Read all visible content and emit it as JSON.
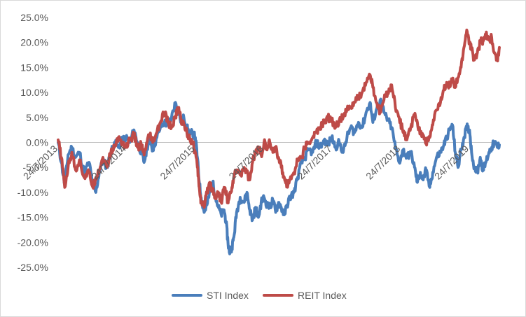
{
  "chart_data": {
    "type": "line",
    "title": "",
    "xlabel": "",
    "ylabel": "",
    "x_range": [
      "2013-07-24",
      "2019-12-31"
    ],
    "ylim": [
      -25,
      25
    ],
    "y_ticks": [
      25,
      20,
      15,
      10,
      5,
      0,
      -5,
      -10,
      -15,
      -20,
      -25
    ],
    "y_tick_labels": [
      "25.0%",
      "20.0%",
      "15.0%",
      "10.0%",
      "5.0%",
      "0.0%",
      "-5.0%",
      "-10.0%",
      "-15.0%",
      "-20.0%",
      "-25.0%"
    ],
    "x_tick_labels": [
      {
        "date": "2013-07-24",
        "label": "24/7/2013"
      },
      {
        "date": "2014-07-24",
        "label": "24/7/2014"
      },
      {
        "date": "2015-07-24",
        "label": "24/7/2015"
      },
      {
        "date": "2016-07-24",
        "label": "24/7/2016"
      },
      {
        "date": "2017-07-24",
        "label": "24/7/2017"
      },
      {
        "date": "2018-07-24",
        "label": "24/7/2018"
      },
      {
        "date": "2019-07-24",
        "label": "24/7/2019"
      }
    ],
    "grid": false,
    "legend_position": "bottom",
    "series": [
      {
        "name": "STI Index",
        "color": "#4a7ebb",
        "points": [
          [
            "2013-07-24",
            0.0
          ],
          [
            "2013-08-10",
            -4.0
          ],
          [
            "2013-08-28",
            -8.5
          ],
          [
            "2013-09-15",
            -2.5
          ],
          [
            "2013-10-05",
            -1.0
          ],
          [
            "2013-10-25",
            -3.0
          ],
          [
            "2013-11-15",
            -2.0
          ],
          [
            "2013-12-10",
            -6.0
          ],
          [
            "2014-01-05",
            -4.0
          ],
          [
            "2014-01-25",
            -8.5
          ],
          [
            "2014-02-10",
            -10.0
          ],
          [
            "2014-02-28",
            -6.0
          ],
          [
            "2014-03-20",
            -3.5
          ],
          [
            "2014-04-10",
            -5.0
          ],
          [
            "2014-05-01",
            -2.0
          ],
          [
            "2014-05-20",
            0.0
          ],
          [
            "2014-06-10",
            -1.0
          ],
          [
            "2014-07-01",
            0.5
          ],
          [
            "2014-07-20",
            1.0
          ],
          [
            "2014-08-10",
            0.0
          ],
          [
            "2014-09-01",
            2.5
          ],
          [
            "2014-09-20",
            0.0
          ],
          [
            "2014-10-10",
            -2.0
          ],
          [
            "2014-10-25",
            -4.0
          ],
          [
            "2014-11-10",
            -1.0
          ],
          [
            "2014-11-25",
            1.0
          ],
          [
            "2014-12-10",
            -1.5
          ],
          [
            "2015-01-01",
            1.0
          ],
          [
            "2015-01-20",
            3.0
          ],
          [
            "2015-02-10",
            4.0
          ],
          [
            "2015-03-01",
            3.5
          ],
          [
            "2015-03-20",
            5.0
          ],
          [
            "2015-04-10",
            8.0
          ],
          [
            "2015-04-25",
            6.5
          ],
          [
            "2015-05-10",
            4.0
          ],
          [
            "2015-05-25",
            5.0
          ],
          [
            "2015-06-10",
            3.0
          ],
          [
            "2015-06-25",
            1.5
          ],
          [
            "2015-07-10",
            2.0
          ],
          [
            "2015-07-25",
            1.0
          ],
          [
            "2015-08-05",
            -3.0
          ],
          [
            "2015-08-15",
            -8.0
          ],
          [
            "2015-08-25",
            -11.0
          ],
          [
            "2015-09-10",
            -14.0
          ],
          [
            "2015-09-25",
            -12.5
          ],
          [
            "2015-10-10",
            -10.0
          ],
          [
            "2015-10-25",
            -8.0
          ],
          [
            "2015-11-10",
            -11.0
          ],
          [
            "2015-11-25",
            -13.0
          ],
          [
            "2015-12-10",
            -14.5
          ],
          [
            "2015-12-25",
            -13.5
          ],
          [
            "2016-01-05",
            -16.0
          ],
          [
            "2016-01-15",
            -20.0
          ],
          [
            "2016-01-22",
            -22.0
          ],
          [
            "2016-02-05",
            -21.0
          ],
          [
            "2016-02-15",
            -19.0
          ],
          [
            "2016-03-01",
            -14.0
          ],
          [
            "2016-03-20",
            -11.0
          ],
          [
            "2016-04-10",
            -12.0
          ],
          [
            "2016-04-25",
            -10.0
          ],
          [
            "2016-05-10",
            -13.5
          ],
          [
            "2016-05-25",
            -15.5
          ],
          [
            "2016-06-10",
            -13.0
          ],
          [
            "2016-06-25",
            -15.0
          ],
          [
            "2016-07-10",
            -12.0
          ],
          [
            "2016-07-25",
            -11.0
          ],
          [
            "2016-08-10",
            -12.5
          ],
          [
            "2016-08-25",
            -13.0
          ],
          [
            "2016-09-10",
            -11.5
          ],
          [
            "2016-09-25",
            -14.0
          ],
          [
            "2016-10-10",
            -12.0
          ],
          [
            "2016-10-25",
            -13.0
          ],
          [
            "2016-11-10",
            -14.5
          ],
          [
            "2016-11-25",
            -12.5
          ],
          [
            "2016-12-10",
            -11.0
          ],
          [
            "2017-01-01",
            -10.0
          ],
          [
            "2017-01-20",
            -7.0
          ],
          [
            "2017-02-10",
            -4.0
          ],
          [
            "2017-02-28",
            -3.0
          ],
          [
            "2017-03-20",
            -1.5
          ],
          [
            "2017-04-10",
            -2.0
          ],
          [
            "2017-04-30",
            0.0
          ],
          [
            "2017-05-20",
            -1.0
          ],
          [
            "2017-06-10",
            0.5
          ],
          [
            "2017-06-30",
            -0.5
          ],
          [
            "2017-07-20",
            1.0
          ],
          [
            "2017-08-10",
            -1.0
          ],
          [
            "2017-08-30",
            0.0
          ],
          [
            "2017-09-20",
            -2.0
          ],
          [
            "2017-10-10",
            1.0
          ],
          [
            "2017-10-30",
            3.0
          ],
          [
            "2017-11-20",
            2.0
          ],
          [
            "2017-12-10",
            4.0
          ],
          [
            "2017-12-30",
            3.0
          ],
          [
            "2018-01-20",
            6.0
          ],
          [
            "2018-02-10",
            8.0
          ],
          [
            "2018-02-25",
            4.0
          ],
          [
            "2018-03-15",
            6.5
          ],
          [
            "2018-04-05",
            8.5
          ],
          [
            "2018-04-25",
            6.0
          ],
          [
            "2018-05-15",
            4.5
          ],
          [
            "2018-06-05",
            3.0
          ],
          [
            "2018-06-25",
            -1.0
          ],
          [
            "2018-07-15",
            -4.0
          ],
          [
            "2018-08-05",
            -1.5
          ],
          [
            "2018-08-25",
            -3.0
          ],
          [
            "2018-09-15",
            -2.0
          ],
          [
            "2018-10-05",
            -5.0
          ],
          [
            "2018-10-20",
            -8.0
          ],
          [
            "2018-11-05",
            -6.0
          ],
          [
            "2018-11-20",
            -7.5
          ],
          [
            "2018-12-05",
            -5.5
          ],
          [
            "2018-12-25",
            -9.0
          ],
          [
            "2019-01-10",
            -6.0
          ],
          [
            "2019-01-30",
            -3.0
          ],
          [
            "2019-02-20",
            -2.0
          ],
          [
            "2019-03-10",
            -0.5
          ],
          [
            "2019-03-25",
            1.0
          ],
          [
            "2019-04-10",
            2.5
          ],
          [
            "2019-04-25",
            3.5
          ],
          [
            "2019-05-10",
            -2.0
          ],
          [
            "2019-05-25",
            -5.0
          ],
          [
            "2019-06-10",
            -1.5
          ],
          [
            "2019-06-25",
            1.0
          ],
          [
            "2019-07-10",
            3.0
          ],
          [
            "2019-07-25",
            2.5
          ],
          [
            "2019-08-05",
            -2.0
          ],
          [
            "2019-08-20",
            -5.0
          ],
          [
            "2019-09-05",
            -6.0
          ],
          [
            "2019-09-20",
            -3.0
          ],
          [
            "2019-10-05",
            -5.5
          ],
          [
            "2019-10-20",
            -4.0
          ],
          [
            "2019-11-05",
            -2.0
          ],
          [
            "2019-11-20",
            -1.0
          ],
          [
            "2019-12-05",
            0.0
          ],
          [
            "2019-12-20",
            -1.0
          ],
          [
            "2019-12-31",
            -0.5
          ]
        ]
      },
      {
        "name": "REIT Index",
        "color": "#be4b48",
        "points": [
          [
            "2013-07-24",
            0.5
          ],
          [
            "2013-08-10",
            -3.0
          ],
          [
            "2013-08-28",
            -9.0
          ],
          [
            "2013-09-15",
            -5.0
          ],
          [
            "2013-10-05",
            -2.0
          ],
          [
            "2013-10-25",
            -5.5
          ],
          [
            "2013-11-15",
            -3.5
          ],
          [
            "2013-12-10",
            -7.0
          ],
          [
            "2014-01-05",
            -6.0
          ],
          [
            "2014-01-25",
            -9.0
          ],
          [
            "2014-02-10",
            -7.0
          ],
          [
            "2014-02-28",
            -5.5
          ],
          [
            "2014-03-20",
            -3.0
          ],
          [
            "2014-04-10",
            -5.0
          ],
          [
            "2014-05-01",
            -2.0
          ],
          [
            "2014-05-20",
            -1.0
          ],
          [
            "2014-06-10",
            1.0
          ],
          [
            "2014-07-01",
            0.0
          ],
          [
            "2014-07-20",
            -1.0
          ],
          [
            "2014-08-10",
            0.5
          ],
          [
            "2014-09-01",
            1.5
          ],
          [
            "2014-09-20",
            -1.0
          ],
          [
            "2014-10-10",
            -0.5
          ],
          [
            "2014-10-25",
            -2.5
          ],
          [
            "2014-11-10",
            0.0
          ],
          [
            "2014-11-25",
            1.5
          ],
          [
            "2014-12-10",
            0.0
          ],
          [
            "2015-01-01",
            2.0
          ],
          [
            "2015-01-20",
            4.0
          ],
          [
            "2015-02-10",
            6.0
          ],
          [
            "2015-03-01",
            4.0
          ],
          [
            "2015-03-20",
            3.0
          ],
          [
            "2015-04-10",
            5.0
          ],
          [
            "2015-04-25",
            7.0
          ],
          [
            "2015-05-10",
            4.5
          ],
          [
            "2015-05-25",
            3.5
          ],
          [
            "2015-06-10",
            2.0
          ],
          [
            "2015-06-25",
            1.0
          ],
          [
            "2015-07-10",
            0.0
          ],
          [
            "2015-07-25",
            -2.0
          ],
          [
            "2015-08-05",
            -5.0
          ],
          [
            "2015-08-15",
            -9.0
          ],
          [
            "2015-08-25",
            -12.0
          ],
          [
            "2015-09-10",
            -13.0
          ],
          [
            "2015-09-25",
            -10.0
          ],
          [
            "2015-10-10",
            -8.0
          ],
          [
            "2015-10-25",
            -9.5
          ],
          [
            "2015-11-10",
            -11.0
          ],
          [
            "2015-11-25",
            -10.0
          ],
          [
            "2015-12-10",
            -12.0
          ],
          [
            "2015-12-25",
            -9.0
          ],
          [
            "2016-01-05",
            -10.0
          ],
          [
            "2016-01-15",
            -12.0
          ],
          [
            "2016-01-22",
            -11.0
          ],
          [
            "2016-02-05",
            -9.0
          ],
          [
            "2016-02-15",
            -7.0
          ],
          [
            "2016-03-01",
            -5.5
          ],
          [
            "2016-03-20",
            -6.5
          ],
          [
            "2016-04-10",
            -5.0
          ],
          [
            "2016-04-25",
            -6.0
          ],
          [
            "2016-05-10",
            -7.5
          ],
          [
            "2016-05-25",
            -4.0
          ],
          [
            "2016-06-10",
            -2.0
          ],
          [
            "2016-06-25",
            -1.0
          ],
          [
            "2016-07-10",
            -2.5
          ],
          [
            "2016-07-25",
            0.0
          ],
          [
            "2016-08-10",
            -1.5
          ],
          [
            "2016-08-25",
            0.0
          ],
          [
            "2016-09-10",
            -2.0
          ],
          [
            "2016-09-25",
            -1.0
          ],
          [
            "2016-10-10",
            -3.0
          ],
          [
            "2016-10-25",
            -5.0
          ],
          [
            "2016-11-10",
            -7.0
          ],
          [
            "2016-11-25",
            -8.5
          ],
          [
            "2016-12-10",
            -7.5
          ],
          [
            "2017-01-01",
            -6.0
          ],
          [
            "2017-01-20",
            -3.5
          ],
          [
            "2017-02-10",
            -3.0
          ],
          [
            "2017-02-28",
            -1.0
          ],
          [
            "2017-03-20",
            0.0
          ],
          [
            "2017-04-10",
            1.0
          ],
          [
            "2017-04-30",
            2.0
          ],
          [
            "2017-05-20",
            3.0
          ],
          [
            "2017-06-10",
            4.0
          ],
          [
            "2017-06-30",
            5.0
          ],
          [
            "2017-07-20",
            4.5
          ],
          [
            "2017-08-10",
            3.0
          ],
          [
            "2017-08-30",
            4.5
          ],
          [
            "2017-09-20",
            5.0
          ],
          [
            "2017-10-10",
            6.5
          ],
          [
            "2017-10-30",
            7.0
          ],
          [
            "2017-11-20",
            8.0
          ],
          [
            "2017-12-10",
            9.0
          ],
          [
            "2017-12-30",
            10.0
          ],
          [
            "2018-01-20",
            12.0
          ],
          [
            "2018-02-10",
            13.5
          ],
          [
            "2018-02-25",
            11.0
          ],
          [
            "2018-03-15",
            8.0
          ],
          [
            "2018-04-05",
            6.0
          ],
          [
            "2018-04-25",
            8.5
          ],
          [
            "2018-05-15",
            10.0
          ],
          [
            "2018-06-05",
            11.5
          ],
          [
            "2018-06-25",
            7.0
          ],
          [
            "2018-07-15",
            5.0
          ],
          [
            "2018-08-05",
            2.0
          ],
          [
            "2018-08-25",
            0.5
          ],
          [
            "2018-09-15",
            3.0
          ],
          [
            "2018-10-05",
            5.5
          ],
          [
            "2018-10-20",
            4.0
          ],
          [
            "2018-11-05",
            2.0
          ],
          [
            "2018-11-20",
            1.5
          ],
          [
            "2018-12-05",
            0.0
          ],
          [
            "2018-12-25",
            1.0
          ],
          [
            "2019-01-10",
            3.5
          ],
          [
            "2019-01-30",
            6.5
          ],
          [
            "2019-02-20",
            8.0
          ],
          [
            "2019-03-10",
            10.5
          ],
          [
            "2019-03-25",
            12.0
          ],
          [
            "2019-04-10",
            11.5
          ],
          [
            "2019-04-25",
            12.5
          ],
          [
            "2019-05-10",
            11.0
          ],
          [
            "2019-05-25",
            13.0
          ],
          [
            "2019-06-10",
            15.0
          ],
          [
            "2019-06-25",
            19.0
          ],
          [
            "2019-07-10",
            22.5
          ],
          [
            "2019-07-25",
            20.0
          ],
          [
            "2019-08-05",
            18.5
          ],
          [
            "2019-08-20",
            16.5
          ],
          [
            "2019-09-05",
            18.0
          ],
          [
            "2019-09-20",
            20.0
          ],
          [
            "2019-10-05",
            20.5
          ],
          [
            "2019-10-20",
            21.5
          ],
          [
            "2019-11-05",
            20.5
          ],
          [
            "2019-11-20",
            21.0
          ],
          [
            "2019-12-05",
            18.0
          ],
          [
            "2019-12-20",
            16.5
          ],
          [
            "2019-12-31",
            19.0
          ]
        ]
      }
    ]
  }
}
